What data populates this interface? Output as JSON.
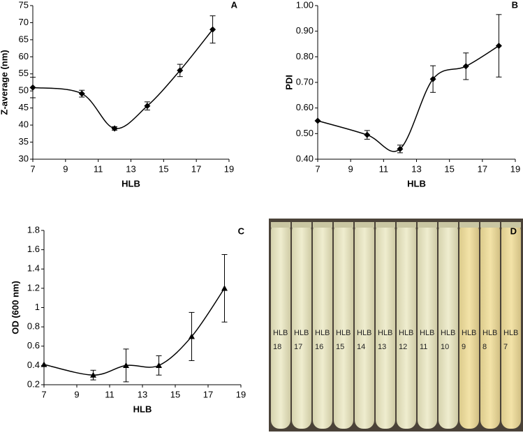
{
  "chart_data": [
    {
      "type": "line",
      "label": "A",
      "xlabel": "HLB",
      "ylabel": "Z-average (nm)",
      "x": [
        7,
        10,
        12,
        14,
        16,
        18
      ],
      "values": [
        51,
        49.2,
        39,
        45.6,
        56,
        68
      ],
      "errors": [
        3,
        1,
        0.5,
        1.2,
        1.8,
        4
      ],
      "marker": "diamond",
      "color": "#000000",
      "xlim": [
        7,
        19
      ],
      "xticks": [
        7,
        9,
        11,
        13,
        15,
        17,
        19
      ],
      "ylim": [
        30,
        75
      ],
      "yticks": [
        30,
        35,
        40,
        45,
        50,
        55,
        60,
        65,
        70,
        75
      ]
    },
    {
      "type": "line",
      "label": "B",
      "xlabel": "HLB",
      "ylabel": "PDI",
      "x": [
        7,
        10,
        12,
        14,
        16,
        18
      ],
      "values": [
        0.55,
        0.495,
        0.44,
        0.713,
        0.763,
        0.843
      ],
      "errors": [
        null,
        0.017,
        0.015,
        0.052,
        0.052,
        0.122
      ],
      "marker": "diamond",
      "color": "#000000",
      "xlim": [
        7,
        19
      ],
      "xticks": [
        7,
        9,
        11,
        13,
        15,
        17,
        19
      ],
      "ylim": [
        0.4,
        1.0
      ],
      "yticks": [
        {
          "value": 0.4,
          "label": "0.40"
        },
        {
          "value": 0.5,
          "label": "0.50"
        },
        {
          "value": 0.6,
          "label": "0.60"
        },
        {
          "value": 0.7,
          "label": "0.70"
        },
        {
          "value": 0.8,
          "label": "0.80"
        },
        {
          "value": 0.9,
          "label": "0.90"
        },
        {
          "value": 1.0,
          "label": "1.00"
        }
      ]
    },
    {
      "type": "line",
      "label": "C",
      "xlabel": "HLB",
      "ylabel": "OD (600 nm)",
      "x": [
        7,
        10,
        12,
        14,
        16,
        18
      ],
      "values": [
        0.41,
        0.3,
        0.4,
        0.4,
        0.7,
        1.2
      ],
      "errors": [
        null,
        0.05,
        0.17,
        0.1,
        0.25,
        0.35
      ],
      "marker": "triangle",
      "color": "#000000",
      "xlim": [
        7,
        19
      ],
      "xticks": [
        7,
        9,
        11,
        13,
        15,
        17,
        19
      ],
      "ylim": [
        0.2,
        1.8
      ],
      "yticks": [
        0.2,
        0.4,
        0.6,
        0.8,
        1,
        1.2,
        1.4,
        1.6,
        1.8
      ]
    }
  ],
  "photo": {
    "label": "D",
    "tube_labels": [
      [
        "HLB",
        "18"
      ],
      [
        "HLB",
        "17"
      ],
      [
        "HLB",
        "16"
      ],
      [
        "HLB",
        "15"
      ],
      [
        "HLB",
        "14"
      ],
      [
        "HLB",
        "13"
      ],
      [
        "HLB",
        "12"
      ],
      [
        "HLB",
        "11"
      ],
      [
        "HLB",
        "10"
      ],
      [
        "HLB",
        "9"
      ],
      [
        "HLB",
        "8"
      ],
      [
        "HLB",
        "7"
      ]
    ]
  }
}
